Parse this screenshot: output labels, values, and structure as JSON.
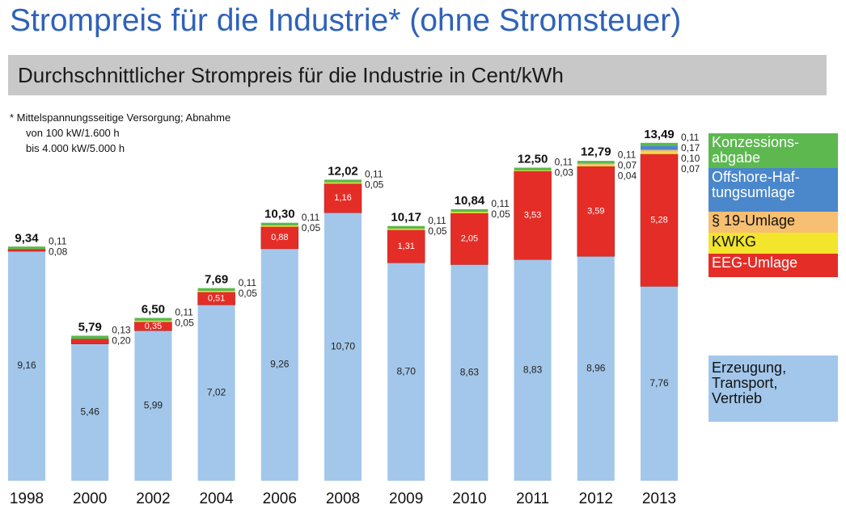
{
  "chart_data": {
    "type": "stacked-bar",
    "title": "Strompreis für die Industrie* (ohne Stromsteuer)",
    "subtitle": "Durchschnittlicher Strompreis für die Industrie in Cent/kWh",
    "footnote": [
      "*  Mittelspannungsseitige Versorgung; Abnahme",
      "von 100 kW/1.600 h",
      "bis 4.000 kW/5.000 h"
    ],
    "categories": [
      "1998",
      "2000",
      "2002",
      "2004",
      "2006",
      "2008",
      "2009",
      "2010",
      "2011",
      "2012",
      "2013"
    ],
    "series": [
      {
        "name": "Erzeugung,\nTransport,\nVertrieb",
        "color": "#a3c7ea",
        "values": [
          9.16,
          5.46,
          5.99,
          7.02,
          9.26,
          10.7,
          8.7,
          8.63,
          8.83,
          8.96,
          7.76
        ],
        "value_labels": [
          "9,16",
          "5,46",
          "5,99",
          "7,02",
          "9,26",
          "10,70",
          "8,70",
          "8,63",
          "8,83",
          "8,96",
          "7,76"
        ]
      },
      {
        "name": "EEG-Umlage",
        "color": "#e52d27",
        "values": [
          0.08,
          0.2,
          0.35,
          0.51,
          0.88,
          1.16,
          1.31,
          2.05,
          3.53,
          3.59,
          5.28
        ],
        "value_labels": [
          "0,08",
          "0,20",
          "0,35",
          "0,51",
          "0,88",
          "1,16",
          "1,31",
          "2,05",
          "3,53",
          "3,59",
          "5,28"
        ]
      },
      {
        "name": "KWKG",
        "color": "#f2e52c",
        "values": [
          null,
          null,
          0.05,
          0.05,
          0.05,
          0.05,
          0.05,
          0.05,
          0.03,
          0.04,
          0.07
        ],
        "value_labels": [
          null,
          null,
          "0,05",
          "0,05",
          "0,05",
          "0,05",
          "0,05",
          "0,05",
          "0,03",
          "0,04",
          "0,07"
        ]
      },
      {
        "name": "§ 19-Umlage",
        "color": "#f7bf72",
        "values": [
          null,
          null,
          null,
          null,
          null,
          null,
          null,
          null,
          null,
          0.07,
          0.1
        ],
        "value_labels": [
          null,
          null,
          null,
          null,
          null,
          null,
          null,
          null,
          null,
          "0,07",
          "0,10"
        ]
      },
      {
        "name": "Offshore-Haf-\ntungsumlage",
        "color": "#4a87cb",
        "values": [
          null,
          null,
          null,
          null,
          null,
          null,
          null,
          null,
          null,
          null,
          0.17
        ],
        "value_labels": [
          null,
          null,
          null,
          null,
          null,
          null,
          null,
          null,
          null,
          null,
          "0,17"
        ]
      },
      {
        "name": "Konzessions-\nabgabe",
        "color": "#5cb84f",
        "values": [
          0.11,
          0.13,
          0.11,
          0.11,
          0.11,
          0.11,
          0.11,
          0.11,
          0.11,
          0.11,
          0.11
        ],
        "value_labels": [
          "0,11",
          "0,13",
          "0,11",
          "0,11",
          "0,11",
          "0,11",
          "0,11",
          "0,11",
          "0,11",
          "0,11",
          "0,11"
        ]
      }
    ],
    "totals": {
      "values": [
        9.34,
        5.79,
        6.5,
        7.69,
        10.3,
        12.02,
        10.17,
        10.84,
        12.5,
        12.79,
        13.49
      ],
      "value_labels": [
        "9,34",
        "5,79",
        "6,50",
        "7,69",
        "10,30",
        "12,02",
        "10,17",
        "10,84",
        "12,50",
        "12,79",
        "13,49"
      ]
    }
  }
}
